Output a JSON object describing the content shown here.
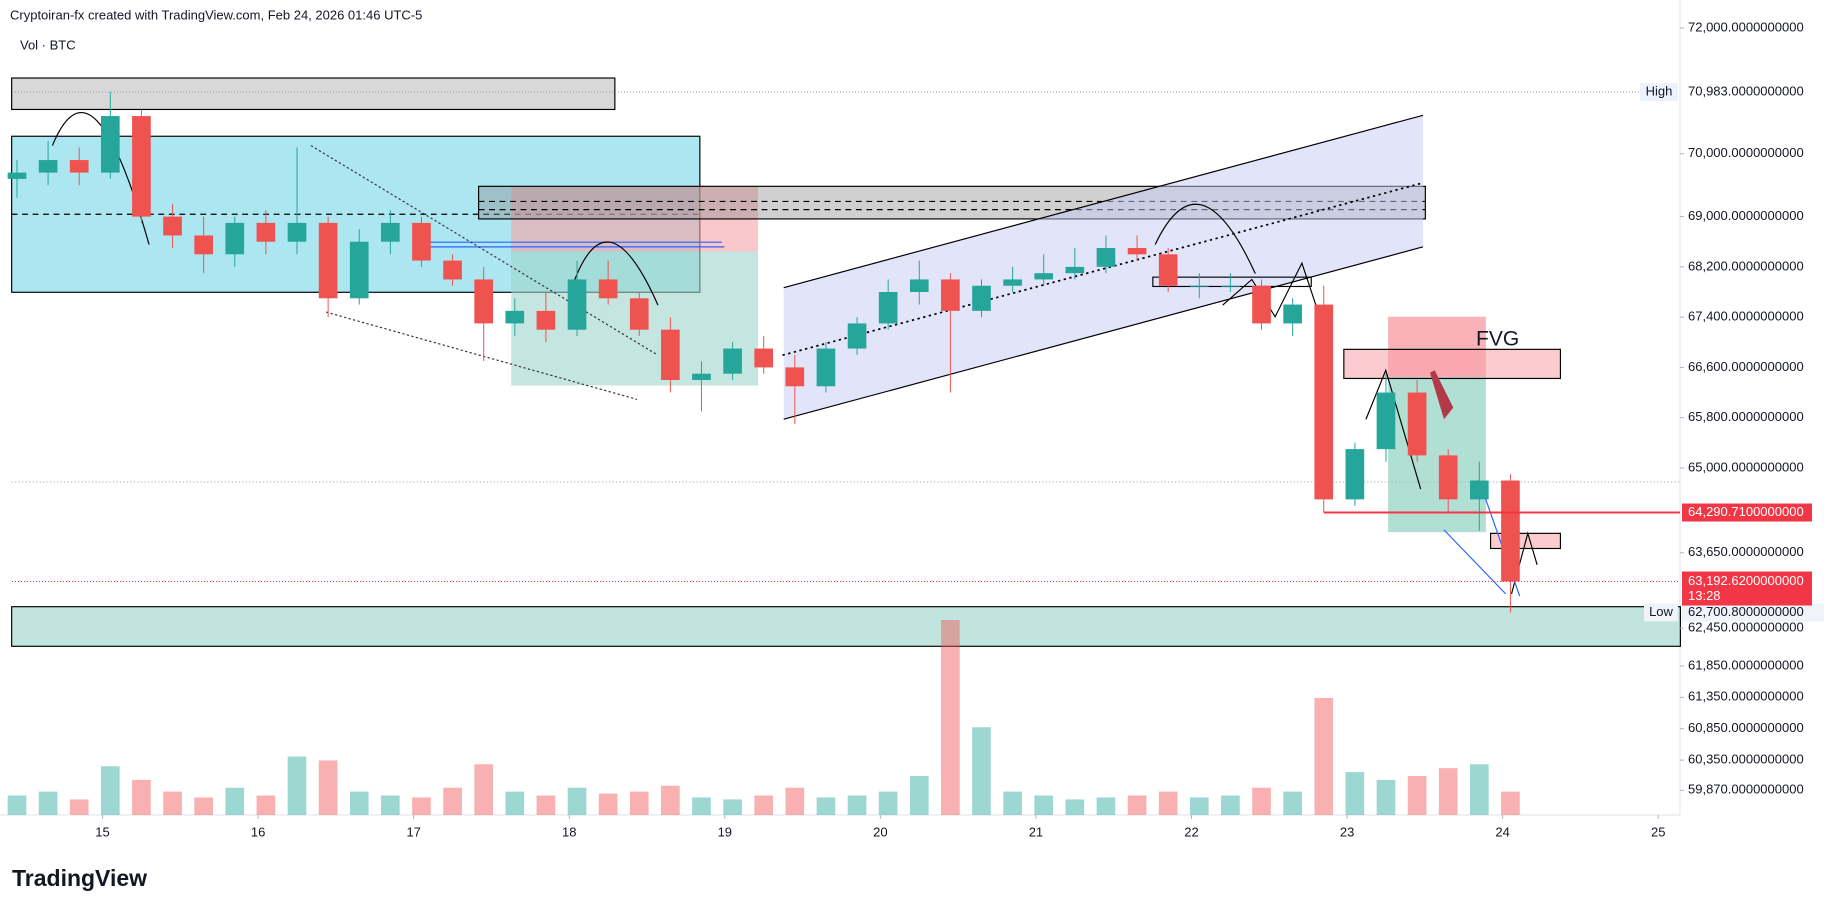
{
  "header": {
    "credit": "Cryptoiran-fx created with TradingView.com, Feb 24, 2026 01:46 UTC-5",
    "indicator": "Vol · BTC"
  },
  "chart_data": {
    "type": "candlestick",
    "x": [
      14.45,
      14.65,
      14.85,
      15.05,
      15.25,
      15.45,
      15.65,
      15.85,
      16.05,
      16.25,
      16.45,
      16.65,
      16.85,
      17.05,
      17.25,
      17.45,
      17.65,
      17.85,
      18.05,
      18.25,
      18.45,
      18.65,
      18.85,
      19.05,
      19.25,
      19.45,
      19.65,
      19.85,
      20.05,
      20.25,
      20.45,
      20.65,
      20.85,
      21.05,
      21.25,
      21.45,
      21.65,
      21.85,
      22.05,
      22.25,
      22.45,
      22.65,
      22.85,
      23.05,
      23.25,
      23.45,
      23.65,
      23.85,
      24.05
    ],
    "open": [
      69600,
      69700,
      69900,
      69700,
      70600,
      69000,
      68700,
      68400,
      68900,
      68600,
      68900,
      67700,
      68600,
      68900,
      68300,
      68000,
      67300,
      67500,
      67200,
      68000,
      67700,
      67200,
      66400,
      66500,
      66900,
      66600,
      66300,
      66900,
      67300,
      67800,
      68000,
      67500,
      67900,
      68000,
      68100,
      68200,
      68500,
      68400,
      67900,
      67900,
      67900,
      67300,
      67600,
      64500,
      65300,
      66200,
      65200,
      64500,
      64800
    ],
    "high": [
      69900,
      70200,
      70100,
      70983,
      70700,
      69200,
      69000,
      69000,
      69100,
      70100,
      69000,
      68800,
      69100,
      69000,
      68400,
      68200,
      67700,
      67800,
      68300,
      68300,
      67800,
      67400,
      66700,
      67000,
      67100,
      66800,
      67000,
      67400,
      68000,
      68300,
      68100,
      68000,
      68200,
      68400,
      68500,
      68700,
      68700,
      68500,
      68100,
      68100,
      68000,
      67700,
      67900,
      65400,
      66500,
      66400,
      65300,
      65100,
      64900
    ],
    "low": [
      69300,
      69500,
      69500,
      69600,
      68900,
      68500,
      68100,
      68200,
      68400,
      68400,
      67400,
      67600,
      68400,
      68200,
      67900,
      66700,
      67100,
      67000,
      67100,
      67600,
      67100,
      66200,
      65900,
      66400,
      66500,
      65700,
      66200,
      66800,
      67200,
      67600,
      66200,
      67400,
      67800,
      67900,
      68000,
      68100,
      68300,
      67800,
      67700,
      67800,
      67200,
      67100,
      64290.71,
      64400,
      65100,
      65100,
      64300,
      64000,
      62700.8
    ],
    "close": [
      69700,
      69900,
      69700,
      70600,
      69000,
      68700,
      68400,
      68900,
      68600,
      68900,
      67700,
      68600,
      68900,
      68300,
      68000,
      67300,
      67500,
      67200,
      68000,
      67700,
      67200,
      66400,
      66500,
      66900,
      66600,
      66300,
      66900,
      67300,
      67800,
      68000,
      67500,
      67900,
      68000,
      68100,
      68200,
      68500,
      68400,
      67900,
      67900,
      67900,
      67300,
      67600,
      64500,
      65300,
      66200,
      65200,
      64500,
      64800,
      63192.62
    ],
    "volume": [
      10,
      12,
      8,
      25,
      18,
      12,
      9,
      14,
      10,
      30,
      28,
      12,
      10,
      9,
      14,
      26,
      12,
      10,
      14,
      11,
      12,
      15,
      9,
      8,
      10,
      14,
      9,
      10,
      12,
      20,
      100,
      45,
      12,
      10,
      8,
      9,
      10,
      12,
      9,
      10,
      14,
      12,
      60,
      22,
      18,
      20,
      24,
      26,
      12
    ],
    "up_color": "#26a69a",
    "down_color": "#ef5350",
    "xlim": [
      14.418,
      25.14
    ],
    "xticks": [
      15,
      16,
      17,
      18,
      19,
      20,
      21,
      22,
      23,
      24,
      25
    ],
    "ylim": [
      59477,
      72447
    ],
    "yticks": [
      {
        "value": 72000,
        "label": "72,000.0000000000"
      },
      {
        "value": 70000,
        "label": "70,000.0000000000"
      },
      {
        "value": 69000,
        "label": "69,000.0000000000"
      },
      {
        "value": 68200,
        "label": "68,200.0000000000"
      },
      {
        "value": 67400,
        "label": "67,400.0000000000"
      },
      {
        "value": 66600,
        "label": "66,600.0000000000"
      },
      {
        "value": 65800,
        "label": "65,800.0000000000"
      },
      {
        "value": 65000,
        "label": "65,000.0000000000"
      },
      {
        "value": 63650,
        "label": "63,650.0000000000"
      },
      {
        "value": 62450,
        "label": "62,450.0000000000"
      },
      {
        "value": 61850,
        "label": "61,850.0000000000"
      },
      {
        "value": 61350,
        "label": "61,350.0000000000"
      },
      {
        "value": 60850,
        "label": "60,850.0000000000"
      },
      {
        "value": 60350,
        "label": "60,350.0000000000"
      },
      {
        "value": 59870,
        "label": "59,870.0000000000"
      }
    ],
    "high_label": {
      "name": "High",
      "value": 70983,
      "label": "70,983.0000000000"
    },
    "low_label": {
      "name": "Low",
      "value": 62700.8,
      "label": "62,700.8000000000"
    },
    "level_label": {
      "value": 64290.71,
      "label": "64,290.7100000000",
      "color": "#f23645"
    },
    "last_label": {
      "value": 63192.62,
      "label": "63,192.6200000000",
      "countdown": "13:28",
      "color": "#f23645"
    },
    "annotation": "FVG"
  },
  "footer": {
    "brand": "TradingView"
  }
}
